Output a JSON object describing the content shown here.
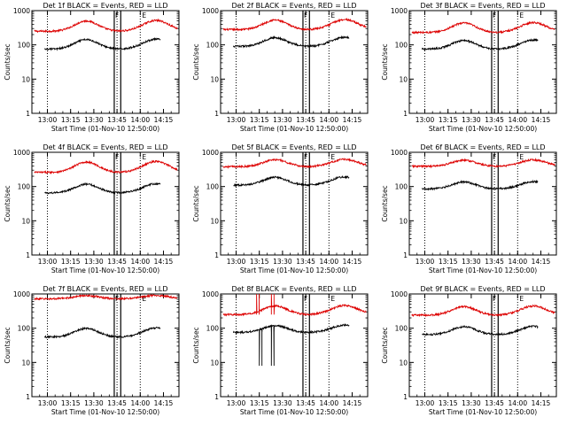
{
  "colors": {
    "events": "#000000",
    "lld": "#dd0000",
    "axis": "#000000",
    "background": "#ffffff"
  },
  "panels": [
    {
      "title": "Det 1f BLACK = Events, RED = LLD",
      "xlabel": "Start Time (01-Nov-10 12:50:00)",
      "ylabel": "Counts/sec",
      "lld_base": 250,
      "lld_amp": 2.0,
      "ev_base": 75,
      "ev_amp": 1.9,
      "lld_spikes": [],
      "ev_spikes": []
    },
    {
      "title": "Det 2f BLACK = Events, RED = LLD",
      "xlabel": "Start Time (01-Nov-10 12:50:00)",
      "ylabel": "Counts/sec",
      "lld_base": 280,
      "lld_amp": 1.9,
      "ev_base": 90,
      "ev_amp": 1.8,
      "lld_spikes": [],
      "ev_spikes": []
    },
    {
      "title": "Det 3f BLACK = Events, RED = LLD",
      "xlabel": "Start Time (01-Nov-10 12:50:00)",
      "ylabel": "Counts/sec",
      "lld_base": 230,
      "lld_amp": 1.9,
      "ev_base": 75,
      "ev_amp": 1.8,
      "lld_spikes": [],
      "ev_spikes": []
    },
    {
      "title": "Det 4f BLACK = Events, RED = LLD",
      "xlabel": "Start Time (01-Nov-10 12:50:00)",
      "ylabel": "Counts/sec",
      "lld_base": 260,
      "lld_amp": 2.0,
      "ev_base": 65,
      "ev_amp": 1.8,
      "lld_spikes": [],
      "ev_spikes": []
    },
    {
      "title": "Det 5f BLACK = Events, RED = LLD",
      "xlabel": "Start Time (01-Nov-10 12:50:00)",
      "ylabel": "Counts/sec",
      "lld_base": 380,
      "lld_amp": 1.6,
      "ev_base": 110,
      "ev_amp": 1.7,
      "lld_spikes": [],
      "ev_spikes": []
    },
    {
      "title": "Det 6f BLACK = Events, RED = LLD",
      "xlabel": "Start Time (01-Nov-10 12:50:00)",
      "ylabel": "Counts/sec",
      "lld_base": 390,
      "lld_amp": 1.5,
      "ev_base": 85,
      "ev_amp": 1.6,
      "lld_spikes": [],
      "ev_spikes": []
    },
    {
      "title": "Det 7f BLACK = Events, RED = LLD",
      "xlabel": "Start Time (01-Nov-10 12:50:00)",
      "ylabel": "Counts/sec",
      "lld_base": 720,
      "lld_amp": 1.25,
      "ev_base": 55,
      "ev_amp": 1.8,
      "lld_spikes": [],
      "ev_spikes": []
    },
    {
      "title": "Det 8f BLACK = Events, RED = LLD",
      "xlabel": "Start Time (01-Nov-10 12:50:00)",
      "ylabel": "Counts/sec",
      "lld_base": 250,
      "lld_amp": 1.8,
      "ev_base": 75,
      "ev_amp": 1.6,
      "lld_spikes": [
        [
          13.22,
          1000
        ],
        [
          13.38,
          1000
        ]
      ],
      "ev_spikes": [
        [
          13.25,
          8
        ],
        [
          13.38,
          8
        ]
      ]
    },
    {
      "title": "Det 9f BLACK = Events, RED = LLD",
      "xlabel": "Start Time (01-Nov-10 12:50:00)",
      "ylabel": "Counts/sec",
      "lld_base": 240,
      "lld_amp": 1.8,
      "ev_base": 65,
      "ev_amp": 1.7,
      "lld_spikes": [],
      "ev_spikes": []
    }
  ],
  "chart_data": {
    "type": "line",
    "x_start": "12:50",
    "x_end": "14:25",
    "x_tick_labels": [
      "13:00",
      "13:15",
      "13:30",
      "13:45",
      "14:00",
      "14:15"
    ],
    "x_tick_hours": [
      13.0,
      13.25,
      13.5,
      13.75,
      14.0,
      14.25
    ],
    "xlim_hours": [
      12.833,
      14.417
    ],
    "y_scale": "log",
    "ylim": [
      1,
      1000
    ],
    "y_tick_labels": [
      "1",
      "10",
      "100",
      "1000"
    ],
    "y_tick_values": [
      1,
      10,
      100,
      1000
    ],
    "dotted_vlines_hours": [
      13.0,
      13.75,
      14.0
    ],
    "band_hours": [
      13.72,
      13.79
    ],
    "band_labels": [
      "F",
      "E"
    ],
    "series": [
      {
        "name": "BLACK = Events",
        "color": "#000000"
      },
      {
        "name": "RED = LLD",
        "color": "#dd0000"
      }
    ],
    "grid": false,
    "legend": "none"
  }
}
